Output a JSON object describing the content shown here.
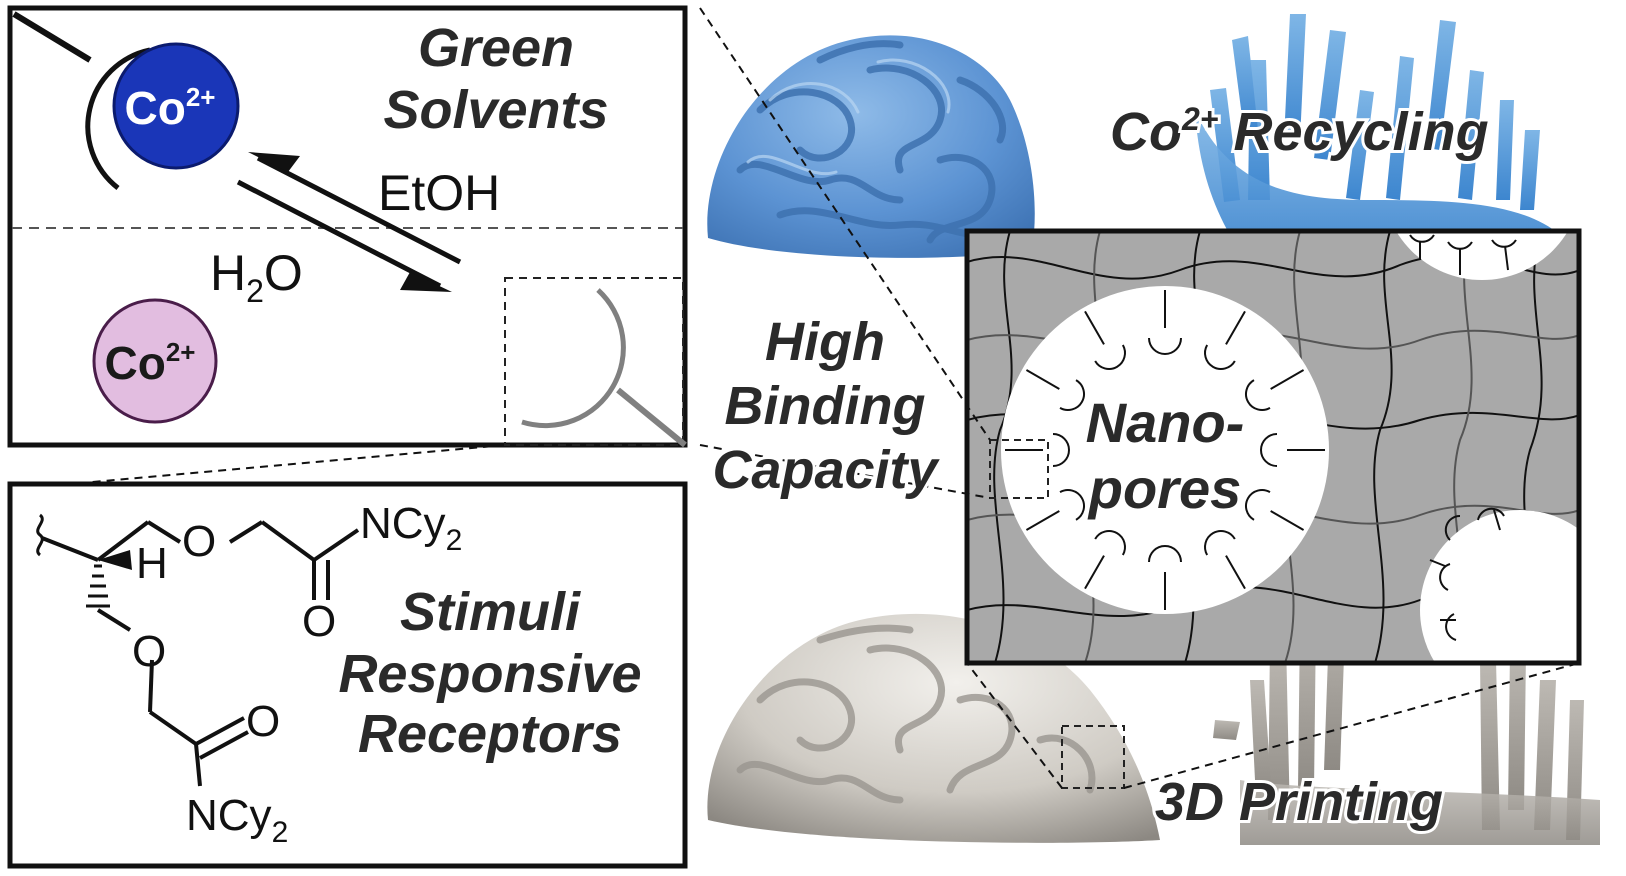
{
  "panel_top": {
    "title_line1": "Green",
    "title_line2": "Solvents",
    "solvent_forward": "EtOH",
    "solvent_reverse_base": "H",
    "solvent_reverse_sub": "2",
    "solvent_reverse_tail": "O",
    "ion_bound": {
      "base": "Co",
      "sup": "2+",
      "color": "#1a36b8"
    },
    "ion_free": {
      "base": "Co",
      "sup": "2+",
      "color": "#e2bde0"
    }
  },
  "panel_bottom": {
    "title_line1": "Stimuli",
    "title_line2": "Responsive",
    "title_line3": "Receptors",
    "atom_o1": "O",
    "atom_o2": "O",
    "atom_o3": "O",
    "atom_o4": "O",
    "atom_h": "H",
    "amide1_base": "NCy",
    "amide1_sub": "2",
    "amide2_base": "NCy",
    "amide2_sub": "2"
  },
  "center": {
    "line1": "High",
    "line2": "Binding",
    "line3": "Capacity"
  },
  "nanopore_panel": {
    "label_line1": "Nano-",
    "label_line2": "pores",
    "matrix_color": "#a9a9a9"
  },
  "photo_labels": {
    "top_base": "Co",
    "top_sup": "2+",
    "top_tail": " Recycling",
    "bottom": "3D Printing"
  },
  "colors": {
    "blue_print": "#6fa3dc",
    "grey_print": "#d8d5cf"
  }
}
